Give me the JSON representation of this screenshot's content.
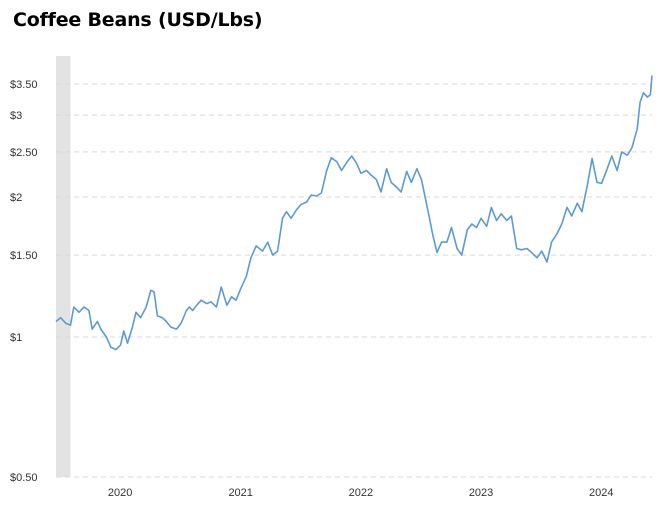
{
  "chart_data": {
    "type": "line",
    "title": "Coffee Beans (USD/Lbs)",
    "xlabel": "",
    "ylabel": "",
    "y_scale": "log",
    "ylim": [
      0.5,
      3.75
    ],
    "xlim": [
      "2019-09-01",
      "2024-08-15"
    ],
    "grid": "horizontal dashed",
    "y_ticks": [
      {
        "value": 0.5,
        "label": "$0.50"
      },
      {
        "value": 1,
        "label": "$1"
      },
      {
        "value": 1.5,
        "label": "$1.50"
      },
      {
        "value": 2,
        "label": "$2"
      },
      {
        "value": 2.5,
        "label": "$2.50"
      },
      {
        "value": 3,
        "label": "$3"
      },
      {
        "value": 3.5,
        "label": "$3.50"
      }
    ],
    "x_ticks": [
      {
        "value": "2020-01-01",
        "label": "2020"
      },
      {
        "value": "2021-01-01",
        "label": "2021"
      },
      {
        "value": "2022-01-01",
        "label": "2022"
      },
      {
        "value": "2023-01-01",
        "label": "2023"
      },
      {
        "value": "2024-01-01",
        "label": "2024"
      }
    ],
    "shaded_period": {
      "start": "2019-09-01",
      "end": "2019-10-15",
      "color": "#e3e3e3"
    },
    "series": [
      {
        "color": "#5b9bd5",
        "points": [
          [
            "2019-09-01",
            1.08
          ],
          [
            "2019-09-15",
            1.1
          ],
          [
            "2019-10-01",
            1.07
          ],
          [
            "2019-10-15",
            1.06
          ],
          [
            "2019-10-25",
            1.16
          ],
          [
            "2019-11-10",
            1.13
          ],
          [
            "2019-11-25",
            1.16
          ],
          [
            "2019-12-10",
            1.14
          ],
          [
            "2019-12-20",
            1.04
          ],
          [
            "2020-01-05",
            1.08
          ],
          [
            "2020-01-15",
            1.04
          ],
          [
            "2020-02-01",
            1.0
          ],
          [
            "2020-02-15",
            0.95
          ],
          [
            "2020-03-01",
            0.94
          ],
          [
            "2020-03-15",
            0.96
          ],
          [
            "2020-03-25",
            1.03
          ],
          [
            "2020-04-05",
            0.97
          ],
          [
            "2020-04-20",
            1.05
          ],
          [
            "2020-05-01",
            1.13
          ],
          [
            "2020-05-15",
            1.1
          ],
          [
            "2020-06-01",
            1.16
          ],
          [
            "2020-06-15",
            1.26
          ],
          [
            "2020-06-25",
            1.25
          ],
          [
            "2020-07-05",
            1.11
          ],
          [
            "2020-07-20",
            1.1
          ],
          [
            "2020-08-01",
            1.08
          ],
          [
            "2020-08-15",
            1.05
          ],
          [
            "2020-09-01",
            1.04
          ],
          [
            "2020-09-15",
            1.07
          ],
          [
            "2020-10-01",
            1.14
          ],
          [
            "2020-10-10",
            1.16
          ],
          [
            "2020-10-20",
            1.14
          ],
          [
            "2020-11-01",
            1.17
          ],
          [
            "2020-11-15",
            1.2
          ],
          [
            "2020-12-01",
            1.18
          ],
          [
            "2020-12-15",
            1.19
          ],
          [
            "2020-12-31",
            1.16
          ],
          [
            "2021-01-15",
            1.28
          ],
          [
            "2021-02-01",
            1.17
          ],
          [
            "2021-02-15",
            1.22
          ],
          [
            "2021-03-01",
            1.2
          ],
          [
            "2021-03-15",
            1.27
          ],
          [
            "2021-04-01",
            1.35
          ],
          [
            "2021-04-15",
            1.48
          ],
          [
            "2021-05-01",
            1.57
          ],
          [
            "2021-05-20",
            1.53
          ],
          [
            "2021-06-05",
            1.6
          ],
          [
            "2021-06-20",
            1.5
          ],
          [
            "2021-07-05",
            1.53
          ],
          [
            "2021-07-20",
            1.8
          ],
          [
            "2021-08-01",
            1.86
          ],
          [
            "2021-08-15",
            1.8
          ],
          [
            "2021-09-01",
            1.88
          ],
          [
            "2021-09-15",
            1.93
          ],
          [
            "2021-10-01",
            1.95
          ],
          [
            "2021-10-15",
            2.02
          ],
          [
            "2021-11-01",
            2.01
          ],
          [
            "2021-11-15",
            2.04
          ],
          [
            "2021-12-01",
            2.28
          ],
          [
            "2021-12-15",
            2.43
          ],
          [
            "2022-01-01",
            2.38
          ],
          [
            "2022-01-15",
            2.28
          ],
          [
            "2022-02-01",
            2.38
          ],
          [
            "2022-02-15",
            2.45
          ],
          [
            "2022-03-01",
            2.37
          ],
          [
            "2022-03-15",
            2.25
          ],
          [
            "2022-04-01",
            2.28
          ],
          [
            "2022-04-15",
            2.23
          ],
          [
            "2022-05-01",
            2.18
          ],
          [
            "2022-05-15",
            2.05
          ],
          [
            "2022-06-01",
            2.3
          ],
          [
            "2022-06-15",
            2.15
          ],
          [
            "2022-07-01",
            2.1
          ],
          [
            "2022-07-15",
            2.05
          ],
          [
            "2022-08-01",
            2.27
          ],
          [
            "2022-08-15",
            2.15
          ],
          [
            "2022-09-01",
            2.3
          ],
          [
            "2022-09-15",
            2.18
          ],
          [
            "2022-10-01",
            1.92
          ],
          [
            "2022-10-10",
            1.79
          ],
          [
            "2022-10-20",
            1.65
          ],
          [
            "2022-11-01",
            1.52
          ],
          [
            "2022-11-15",
            1.6
          ],
          [
            "2022-12-01",
            1.6
          ],
          [
            "2022-12-15",
            1.72
          ],
          [
            "2023-01-01",
            1.55
          ],
          [
            "2023-01-15",
            1.5
          ],
          [
            "2023-02-01",
            1.7
          ],
          [
            "2023-02-15",
            1.75
          ],
          [
            "2023-03-01",
            1.72
          ],
          [
            "2023-03-15",
            1.8
          ],
          [
            "2023-04-01",
            1.73
          ],
          [
            "2023-04-15",
            1.9
          ],
          [
            "2023-05-01",
            1.78
          ],
          [
            "2023-05-15",
            1.84
          ],
          [
            "2023-06-01",
            1.78
          ],
          [
            "2023-06-15",
            1.82
          ],
          [
            "2023-07-01",
            1.55
          ],
          [
            "2023-07-15",
            1.54
          ],
          [
            "2023-08-01",
            1.55
          ],
          [
            "2023-08-15",
            1.52
          ],
          [
            "2023-09-01",
            1.48
          ],
          [
            "2023-09-15",
            1.53
          ],
          [
            "2023-10-01",
            1.45
          ],
          [
            "2023-10-15",
            1.6
          ],
          [
            "2023-11-01",
            1.67
          ],
          [
            "2023-11-15",
            1.75
          ],
          [
            "2023-12-01",
            1.9
          ],
          [
            "2023-12-15",
            1.82
          ],
          [
            "2024-01-01",
            1.94
          ],
          [
            "2024-01-15",
            1.86
          ],
          [
            "2024-02-01",
            2.13
          ],
          [
            "2024-02-15",
            2.42
          ],
          [
            "2024-03-01",
            2.15
          ],
          [
            "2024-03-15",
            2.14
          ],
          [
            "2024-04-01",
            2.3
          ],
          [
            "2024-04-15",
            2.45
          ],
          [
            "2024-05-01",
            2.28
          ],
          [
            "2024-05-15",
            2.5
          ],
          [
            "2024-06-01",
            2.46
          ],
          [
            "2024-06-15",
            2.55
          ],
          [
            "2024-07-01",
            2.8
          ],
          [
            "2024-07-10",
            3.2
          ],
          [
            "2024-07-20",
            3.35
          ],
          [
            "2024-08-01",
            3.28
          ],
          [
            "2024-08-10",
            3.32
          ],
          [
            "2024-08-15",
            3.65
          ]
        ]
      }
    ]
  }
}
